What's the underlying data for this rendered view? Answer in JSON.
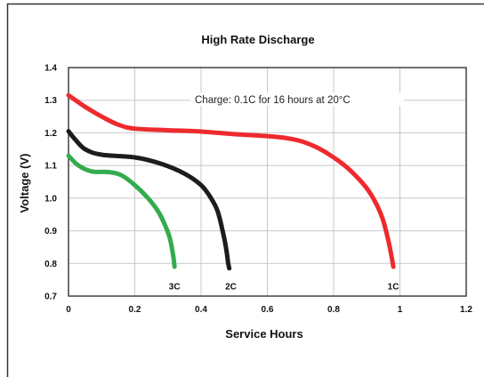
{
  "chart_data": {
    "type": "line",
    "title": "High Rate Discharge",
    "xlabel": "Service Hours",
    "ylabel": "Voltage (V)",
    "xlim": [
      0,
      1.2
    ],
    "ylim": [
      0.7,
      1.4
    ],
    "x_ticks": [
      "0",
      "0.2",
      "0.4",
      "0.6",
      "0.8",
      "1",
      "1.2"
    ],
    "y_ticks": [
      "0.7",
      "0.8",
      "0.9",
      "1.0",
      "1.1",
      "1.2",
      "1.3",
      "1.4"
    ],
    "grid": true,
    "annotation": "Charge: 0.1C for 16 hours at 20°C",
    "series": [
      {
        "name": "1C",
        "color": "#ee2a2e",
        "points": [
          [
            0,
            1.315
          ],
          [
            0.05,
            1.28
          ],
          [
            0.1,
            1.25
          ],
          [
            0.15,
            1.225
          ],
          [
            0.2,
            1.213
          ],
          [
            0.3,
            1.208
          ],
          [
            0.4,
            1.204
          ],
          [
            0.5,
            1.196
          ],
          [
            0.6,
            1.19
          ],
          [
            0.65,
            1.185
          ],
          [
            0.7,
            1.175
          ],
          [
            0.75,
            1.155
          ],
          [
            0.8,
            1.125
          ],
          [
            0.85,
            1.085
          ],
          [
            0.9,
            1.03
          ],
          [
            0.93,
            0.98
          ],
          [
            0.95,
            0.93
          ],
          [
            0.965,
            0.87
          ],
          [
            0.975,
            0.82
          ],
          [
            0.98,
            0.79
          ]
        ]
      },
      {
        "name": "2C",
        "color": "#1c1c1c",
        "points": [
          [
            0,
            1.205
          ],
          [
            0.02,
            1.18
          ],
          [
            0.05,
            1.15
          ],
          [
            0.1,
            1.133
          ],
          [
            0.2,
            1.125
          ],
          [
            0.28,
            1.105
          ],
          [
            0.35,
            1.075
          ],
          [
            0.4,
            1.04
          ],
          [
            0.43,
            1.0
          ],
          [
            0.45,
            0.96
          ],
          [
            0.465,
            0.9
          ],
          [
            0.475,
            0.85
          ],
          [
            0.482,
            0.8
          ],
          [
            0.485,
            0.785
          ]
        ]
      },
      {
        "name": "3C",
        "color": "#33ac4e",
        "points": [
          [
            0,
            1.13
          ],
          [
            0.03,
            1.1
          ],
          [
            0.07,
            1.082
          ],
          [
            0.12,
            1.08
          ],
          [
            0.16,
            1.07
          ],
          [
            0.2,
            1.04
          ],
          [
            0.24,
            1.0
          ],
          [
            0.27,
            0.96
          ],
          [
            0.29,
            0.92
          ],
          [
            0.305,
            0.88
          ],
          [
            0.315,
            0.83
          ],
          [
            0.32,
            0.79
          ]
        ]
      }
    ],
    "curve_labels": [
      {
        "text": "3C",
        "x": 0.32,
        "y": 0.73
      },
      {
        "text": "2C",
        "x": 0.49,
        "y": 0.73
      },
      {
        "text": "1C",
        "x": 0.98,
        "y": 0.73
      }
    ]
  }
}
